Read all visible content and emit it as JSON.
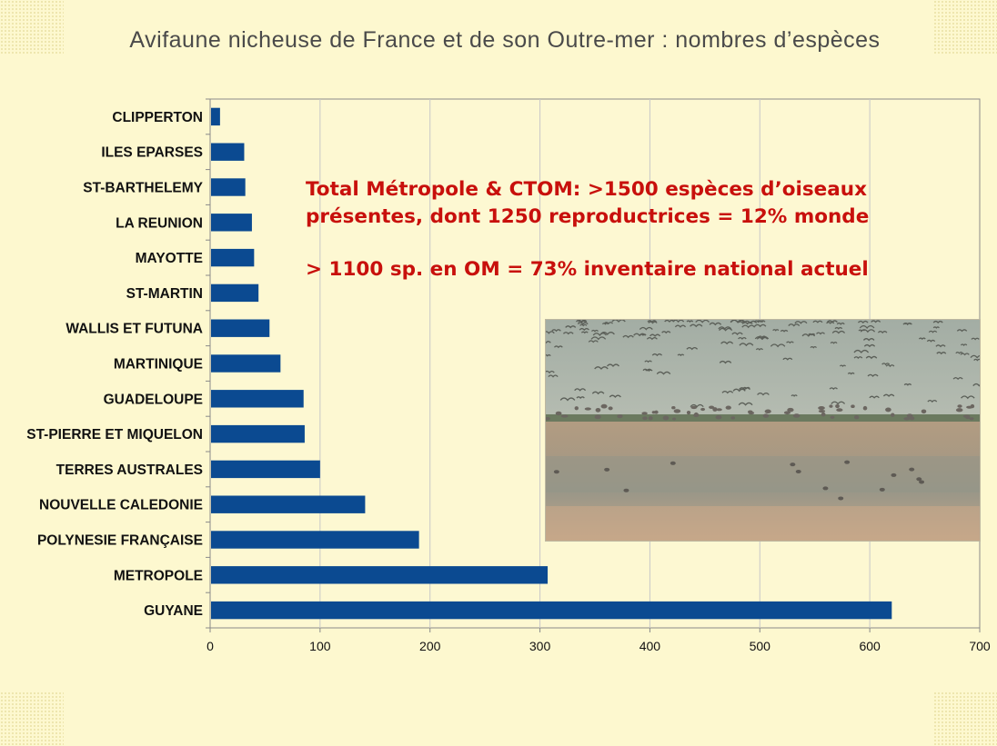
{
  "title": "Avifaune nicheuse de France et de son Outre-mer : nombres d’espèces",
  "annotations": {
    "line1": "Total Métropole & CTOM: >1500 espèces d’oiseaux",
    "line2": "présentes, dont 1250 reproductrices = 12% monde",
    "line3": "> 1100 sp. en OM = 73% inventaire national actuel"
  },
  "colors": {
    "bar": "#0b4a91",
    "annotation": "#c8100c",
    "background": "#fdf8cf",
    "grid": "#c8c8c8"
  },
  "photo": {
    "subject": "flock of shorebirds and gulls on a tidal flat"
  },
  "chart_data": {
    "type": "bar",
    "orientation": "horizontal",
    "categories": [
      "CLIPPERTON",
      "ILES EPARSES",
      "ST-BARTHELEMY",
      "LA REUNION",
      "MAYOTTE",
      "ST-MARTIN",
      "WALLIS ET FUTUNA",
      "MARTINIQUE",
      "GUADELOUPE",
      "ST-PIERRE ET MIQUELON",
      "TERRES AUSTRALES",
      "NOUVELLE CALEDONIE",
      "POLYNESIE FRANÇAISE",
      "METROPOLE",
      "GUYANE"
    ],
    "values": [
      9,
      31,
      32,
      38,
      40,
      44,
      54,
      64,
      85,
      86,
      100,
      141,
      190,
      307,
      620
    ],
    "xlim": [
      0,
      700
    ],
    "ticks": [
      "0",
      "100",
      "200",
      "300",
      "400",
      "500",
      "600",
      "700"
    ],
    "grid": "vertical",
    "legend": "none"
  }
}
